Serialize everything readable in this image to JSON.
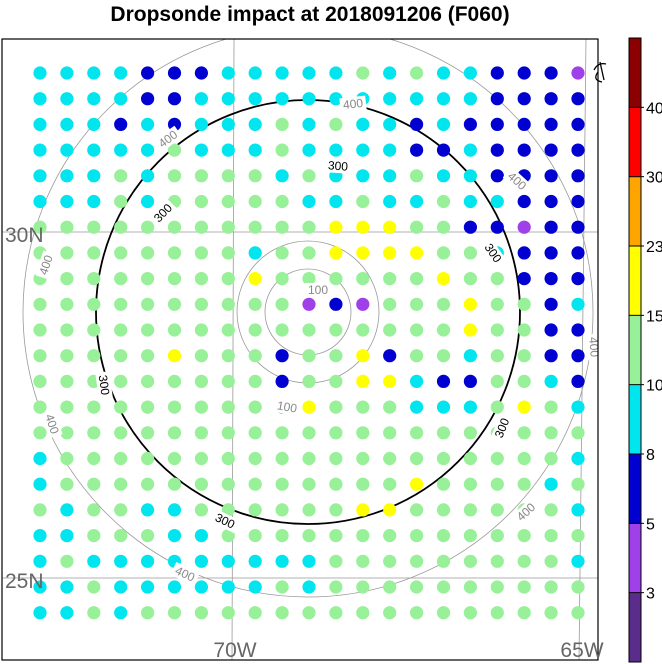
{
  "chart_data": {
    "type": "scatter",
    "title": "Dropsonde impact at 2018091206 (F060)",
    "lat_labels": [
      "30N",
      "25N"
    ],
    "lon_labels": [
      "70W",
      "65W"
    ],
    "rings": [
      {
        "value": 100,
        "label": "100",
        "emphasis": false
      },
      {
        "value": 200,
        "label": "",
        "emphasis": false
      },
      {
        "value": 300,
        "label": "300",
        "emphasis": true
      },
      {
        "value": 400,
        "label": "400",
        "emphasis": false
      }
    ],
    "colorbar": {
      "levels": [
        3,
        5,
        8,
        10,
        15,
        23,
        30,
        40
      ],
      "colors": [
        "#5a2d8c",
        "#a040e8",
        "#0000d0",
        "#00e5ee",
        "#98f098",
        "#ffff00",
        "#ffa500",
        "#ff0000",
        "#8b0000"
      ]
    },
    "columns": 21,
    "rows": 22,
    "category_colors": {
      "P": "#a040e8",
      "B": "#0000d0",
      "C": "#00e5ee",
      "G": "#98f098",
      "Y": "#ffff00"
    },
    "grid": [
      "CCCCBBBCCCCCGCGCCBBBP",
      "CCCCBBCCCCCCCCCCCBBBB",
      "CCCBCBCCCGCGCCBCBBBBB",
      "CCCCCGCCCGCCCCBBCBBBB",
      "CCCGCGGGGCGCCCGCCBBBB",
      "CCCGCGGGGGCCGCCGCCBBB",
      "GGGGGGGGGGGYYYGGBBPBB",
      "GGGGGGGGCGGYYYYGGCBBB",
      "GGGGGGGGYGGGGGGYGGBBB",
      "GGGGGGGGGGPBPGGGYGGBC",
      "GGGGGGGGGGGGGGGGYGGBB",
      "GGGGGYGGGBGGYBGGCGGBB",
      "GGGGGGGGGBGGYYCBBGGCB",
      "GGGGGGGGGCYGGGCCCGYGC",
      "GGGGGGGGGGGGGGGGGGGGG",
      "CGGGGGGGGGGGGGGGGGGGC",
      "CGGGGGGGGGGGGGYGGGGCG",
      "GCGGCCGGGGGGYYGGGGGGC",
      "CCGGGCCGGGGGGGGGGGGGG",
      "CGCCCCCCCCCGGGGGGGGGC",
      "CCGCCCCCCGCGGGGGGGGGG",
      "CCGCGGGGGGGGGGGGGGGGG"
    ]
  }
}
